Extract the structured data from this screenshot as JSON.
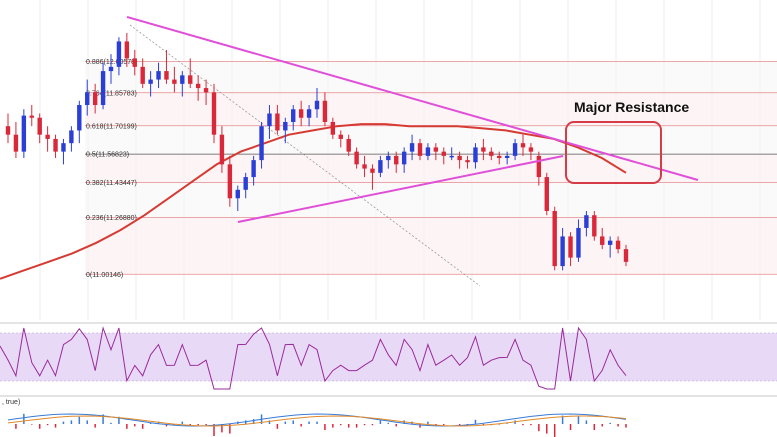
{
  "chart_data": {
    "type": "candlestick",
    "price_range": [
      10.88,
      12.22
    ],
    "fibonacci_levels": [
      {
        "ratio": "0.886",
        "price": 12.00578,
        "label": "0.886(12.00578)"
      },
      {
        "ratio": "0.764",
        "price": 11.85783,
        "label": "0.764(11.85783)"
      },
      {
        "ratio": "0.618",
        "price": 11.70199,
        "label": "0.618(11.70199)"
      },
      {
        "ratio": "0.5",
        "price": 11.56823,
        "label": "0.5(11.56823)"
      },
      {
        "ratio": "0.382",
        "price": 11.43447,
        "label": "0.382(11.43447)"
      },
      {
        "ratio": "0.236",
        "price": 11.2688,
        "label": "0.236(11.26880)"
      },
      {
        "ratio": "0",
        "price": 11.00146,
        "label": "0(11.00146)"
      }
    ],
    "candles": [
      [
        11.7,
        11.76,
        11.62,
        11.66
      ],
      [
        11.66,
        11.72,
        11.55,
        11.58
      ],
      [
        11.58,
        11.78,
        11.55,
        11.75
      ],
      [
        11.75,
        11.8,
        11.7,
        11.74
      ],
      [
        11.74,
        11.76,
        11.62,
        11.66
      ],
      [
        11.66,
        11.7,
        11.58,
        11.64
      ],
      [
        11.64,
        11.66,
        11.55,
        11.58
      ],
      [
        11.58,
        11.64,
        11.52,
        11.62
      ],
      [
        11.62,
        11.7,
        11.58,
        11.68
      ],
      [
        11.68,
        11.82,
        11.62,
        11.8
      ],
      [
        11.8,
        11.92,
        11.75,
        11.86
      ],
      [
        11.86,
        11.9,
        11.76,
        11.8
      ],
      [
        11.8,
        12.0,
        11.78,
        11.96
      ],
      [
        11.96,
        12.04,
        11.9,
        11.98
      ],
      [
        11.98,
        12.12,
        11.94,
        12.1
      ],
      [
        12.1,
        12.14,
        11.98,
        12.02
      ],
      [
        12.02,
        12.06,
        11.94,
        11.98
      ],
      [
        11.98,
        12.02,
        11.88,
        11.9
      ],
      [
        11.9,
        11.96,
        11.84,
        11.92
      ],
      [
        11.92,
        12.0,
        11.88,
        11.96
      ],
      [
        11.96,
        12.06,
        11.9,
        11.92
      ],
      [
        11.92,
        11.98,
        11.86,
        11.9
      ],
      [
        11.9,
        11.96,
        11.84,
        11.94
      ],
      [
        11.94,
        12.02,
        11.88,
        11.9
      ],
      [
        11.9,
        11.94,
        11.82,
        11.88
      ],
      [
        11.88,
        11.92,
        11.8,
        11.86
      ],
      [
        11.86,
        11.9,
        11.62,
        11.66
      ],
      [
        11.66,
        11.7,
        11.48,
        11.52
      ],
      [
        11.52,
        11.56,
        11.32,
        11.36
      ],
      [
        11.36,
        11.42,
        11.3,
        11.4
      ],
      [
        11.4,
        11.48,
        11.36,
        11.46
      ],
      [
        11.46,
        11.56,
        11.42,
        11.54
      ],
      [
        11.54,
        11.72,
        11.5,
        11.7
      ],
      [
        11.7,
        11.8,
        11.64,
        11.76
      ],
      [
        11.76,
        11.8,
        11.66,
        11.68
      ],
      [
        11.68,
        11.74,
        11.62,
        11.72
      ],
      [
        11.72,
        11.8,
        11.68,
        11.78
      ],
      [
        11.78,
        11.82,
        11.7,
        11.74
      ],
      [
        11.74,
        11.8,
        11.7,
        11.78
      ],
      [
        11.78,
        11.88,
        11.74,
        11.82
      ],
      [
        11.82,
        11.86,
        11.7,
        11.72
      ],
      [
        11.72,
        11.74,
        11.64,
        11.66
      ],
      [
        11.66,
        11.68,
        11.6,
        11.64
      ],
      [
        11.64,
        11.66,
        11.56,
        11.58
      ],
      [
        11.58,
        11.6,
        11.5,
        11.52
      ],
      [
        11.52,
        11.56,
        11.46,
        11.5
      ],
      [
        11.5,
        11.52,
        11.4,
        11.48
      ],
      [
        11.48,
        11.56,
        11.46,
        11.54
      ],
      [
        11.54,
        11.58,
        11.5,
        11.56
      ],
      [
        11.56,
        11.58,
        11.48,
        11.52
      ],
      [
        11.52,
        11.6,
        11.48,
        11.58
      ],
      [
        11.58,
        11.66,
        11.54,
        11.62
      ],
      [
        11.62,
        11.64,
        11.54,
        11.56
      ],
      [
        11.56,
        11.62,
        11.54,
        11.6
      ],
      [
        11.6,
        11.62,
        11.54,
        11.58
      ],
      [
        11.58,
        11.6,
        11.52,
        11.56
      ],
      [
        11.56,
        11.6,
        11.54,
        11.56
      ],
      [
        11.56,
        11.58,
        11.5,
        11.54
      ],
      [
        11.54,
        11.56,
        11.5,
        11.53
      ],
      [
        11.53,
        11.62,
        11.5,
        11.6
      ],
      [
        11.6,
        11.64,
        11.54,
        11.58
      ],
      [
        11.58,
        11.6,
        11.54,
        11.56
      ],
      [
        11.56,
        11.58,
        11.52,
        11.55
      ],
      [
        11.55,
        11.58,
        11.52,
        11.56
      ],
      [
        11.56,
        11.64,
        11.54,
        11.62
      ],
      [
        11.62,
        11.66,
        11.56,
        11.6
      ],
      [
        11.6,
        11.62,
        11.54,
        11.58
      ],
      [
        11.56,
        11.58,
        11.42,
        11.46
      ],
      [
        11.46,
        11.48,
        11.28,
        11.3
      ],
      [
        11.3,
        11.32,
        11.02,
        11.04
      ],
      [
        11.04,
        11.22,
        11.02,
        11.18
      ],
      [
        11.18,
        11.2,
        11.04,
        11.08
      ],
      [
        11.08,
        11.26,
        11.06,
        11.22
      ],
      [
        11.22,
        11.3,
        11.18,
        11.28
      ],
      [
        11.28,
        11.3,
        11.16,
        11.18
      ],
      [
        11.18,
        11.22,
        11.12,
        11.14
      ],
      [
        11.14,
        11.18,
        11.08,
        11.16
      ],
      [
        11.16,
        11.18,
        11.1,
        11.12
      ],
      [
        11.12,
        11.14,
        11.04,
        11.06
      ]
    ],
    "ma": [
      10.98,
      11.02,
      11.06,
      11.1,
      11.15,
      11.21,
      11.28,
      11.36,
      11.44,
      11.52,
      11.58,
      11.62,
      11.66,
      11.68,
      11.7,
      11.71,
      11.71,
      11.7,
      11.7,
      11.7,
      11.69,
      11.68,
      11.66,
      11.64,
      11.6,
      11.55,
      11.48
    ]
  },
  "annotations": {
    "major_resistance": "Major Resistance"
  },
  "indicators": {
    "macd_label": ", true)"
  },
  "colors": {
    "bull": "#2b3fd6",
    "bear": "#d9283a",
    "trendline": "#e04fd8",
    "ma": "#d63b33",
    "fib": "#e6898c",
    "box": "#d63b48",
    "rsi_band": "#ddc7f0",
    "rsi_line": "#9a2b9a"
  }
}
